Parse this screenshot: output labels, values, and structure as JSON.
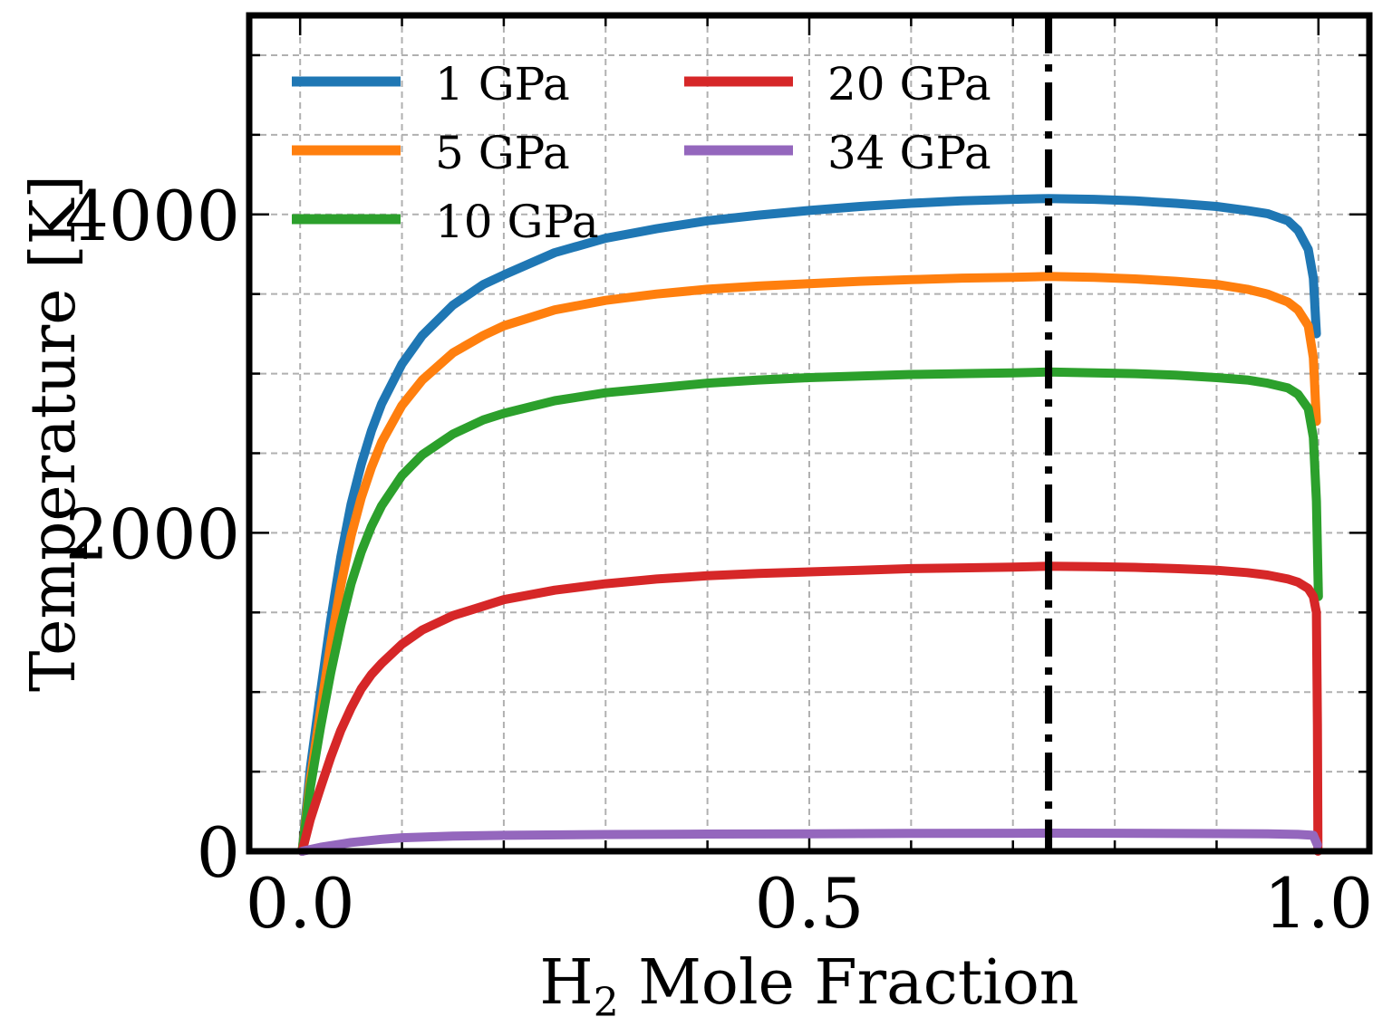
{
  "chart_data": {
    "type": "line",
    "title": "",
    "xlabel_main": "H",
    "xlabel_sub": "2",
    "xlabel_rest": " Mole Fraction",
    "ylabel": "Temperature [K]",
    "xlim": [
      -0.05,
      1.05
    ],
    "ylim": [
      0,
      5250
    ],
    "xticks": [
      {
        "value": 0.0,
        "label": "0.0"
      },
      {
        "value": 0.5,
        "label": "0.5"
      },
      {
        "value": 1.0,
        "label": "1.0"
      }
    ],
    "yticks": [
      {
        "value": 0,
        "label": "0"
      },
      {
        "value": 2000,
        "label": "2000"
      },
      {
        "value": 4000,
        "label": "4000"
      }
    ],
    "x_minor_step": 0.1,
    "y_minor_step": 500,
    "grid": true,
    "vline": {
      "x": 0.735,
      "style": "dashdot",
      "color": "#000000"
    },
    "legend_position": "upper-left",
    "legend_columns": 2,
    "series": [
      {
        "name": "1 GPa",
        "color": "#1f77b4",
        "x": [
          0.002,
          0.01,
          0.02,
          0.03,
          0.04,
          0.05,
          0.06,
          0.07,
          0.08,
          0.1,
          0.12,
          0.15,
          0.18,
          0.2,
          0.25,
          0.3,
          0.35,
          0.4,
          0.45,
          0.5,
          0.55,
          0.6,
          0.65,
          0.7,
          0.735,
          0.78,
          0.82,
          0.86,
          0.9,
          0.93,
          0.95,
          0.97,
          0.98,
          0.99,
          0.995,
          0.998
        ],
        "y": [
          0,
          520,
          1000,
          1450,
          1850,
          2180,
          2430,
          2640,
          2810,
          3060,
          3240,
          3430,
          3560,
          3620,
          3760,
          3850,
          3910,
          3960,
          3995,
          4025,
          4050,
          4070,
          4085,
          4095,
          4100,
          4095,
          4085,
          4070,
          4050,
          4025,
          4005,
          3960,
          3900,
          3780,
          3600,
          3250
        ]
      },
      {
        "name": "5 GPa",
        "color": "#ff7f0e",
        "x": [
          0.002,
          0.01,
          0.02,
          0.03,
          0.04,
          0.05,
          0.06,
          0.07,
          0.08,
          0.1,
          0.12,
          0.15,
          0.18,
          0.2,
          0.25,
          0.3,
          0.35,
          0.4,
          0.45,
          0.5,
          0.55,
          0.6,
          0.65,
          0.7,
          0.735,
          0.78,
          0.82,
          0.86,
          0.9,
          0.93,
          0.95,
          0.97,
          0.98,
          0.99,
          0.995,
          0.998
        ],
        "y": [
          0,
          450,
          880,
          1300,
          1670,
          1980,
          2220,
          2410,
          2570,
          2800,
          2960,
          3130,
          3240,
          3300,
          3400,
          3460,
          3500,
          3530,
          3550,
          3565,
          3580,
          3590,
          3600,
          3605,
          3610,
          3605,
          3595,
          3580,
          3560,
          3530,
          3500,
          3450,
          3400,
          3300,
          3100,
          2700
        ]
      },
      {
        "name": "10 GPa",
        "color": "#2ca02c",
        "x": [
          0.002,
          0.01,
          0.02,
          0.03,
          0.04,
          0.05,
          0.06,
          0.07,
          0.08,
          0.1,
          0.12,
          0.15,
          0.18,
          0.2,
          0.25,
          0.3,
          0.35,
          0.4,
          0.45,
          0.5,
          0.55,
          0.6,
          0.65,
          0.7,
          0.735,
          0.78,
          0.82,
          0.86,
          0.9,
          0.93,
          0.95,
          0.97,
          0.98,
          0.99,
          0.995,
          0.998,
          1.0
        ],
        "y": [
          0,
          400,
          780,
          1120,
          1420,
          1680,
          1880,
          2040,
          2170,
          2360,
          2490,
          2620,
          2710,
          2750,
          2830,
          2880,
          2910,
          2940,
          2960,
          2975,
          2985,
          2995,
          3000,
          3005,
          3010,
          3005,
          3000,
          2990,
          2975,
          2960,
          2940,
          2910,
          2870,
          2780,
          2600,
          2200,
          1600
        ]
      },
      {
        "name": "20 GPa",
        "color": "#d62728",
        "x": [
          0.002,
          0.01,
          0.02,
          0.03,
          0.04,
          0.05,
          0.06,
          0.07,
          0.08,
          0.1,
          0.12,
          0.15,
          0.18,
          0.2,
          0.25,
          0.3,
          0.35,
          0.4,
          0.45,
          0.5,
          0.55,
          0.6,
          0.65,
          0.7,
          0.735,
          0.78,
          0.82,
          0.86,
          0.9,
          0.93,
          0.95,
          0.97,
          0.98,
          0.99,
          0.995,
          0.998,
          0.999,
          0.9995
        ],
        "y": [
          0,
          200,
          400,
          590,
          760,
          900,
          1020,
          1110,
          1180,
          1300,
          1390,
          1480,
          1540,
          1580,
          1640,
          1680,
          1710,
          1730,
          1745,
          1755,
          1765,
          1775,
          1780,
          1785,
          1790,
          1787,
          1783,
          1775,
          1765,
          1750,
          1735,
          1710,
          1690,
          1650,
          1600,
          1500,
          800,
          0
        ]
      },
      {
        "name": "34 GPa",
        "color": "#9467bd",
        "x": [
          0.002,
          0.02,
          0.05,
          0.08,
          0.1,
          0.15,
          0.2,
          0.3,
          0.4,
          0.5,
          0.6,
          0.7,
          0.735,
          0.8,
          0.9,
          0.95,
          0.98,
          0.995,
          0.999
        ],
        "y": [
          0,
          25,
          55,
          75,
          85,
          95,
          100,
          105,
          108,
          110,
          112,
          113,
          114,
          113,
          111,
          109,
          106,
          100,
          40
        ]
      }
    ]
  }
}
